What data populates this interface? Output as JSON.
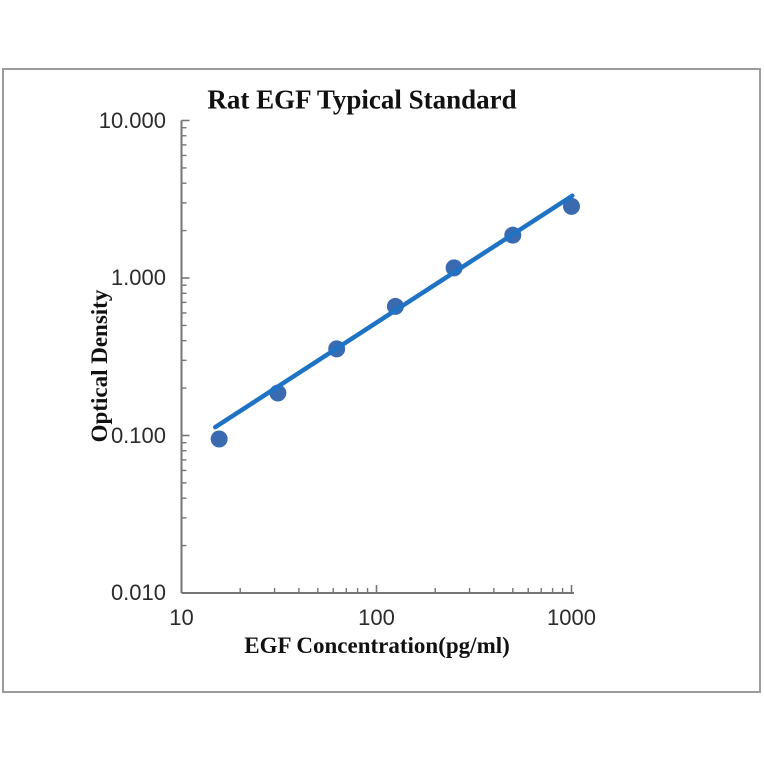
{
  "figure": {
    "background_color": "#ffffff",
    "frame_border_color": "#9c9c9c"
  },
  "chart_data": {
    "type": "scatter",
    "title": "Rat EGF Typical Standard",
    "xlabel": "EGF Concentration(pg/ml)",
    "ylabel": "Optical Density",
    "x_scale": "log",
    "y_scale": "log",
    "xlim": [
      10,
      1000
    ],
    "ylim": [
      0.01,
      10
    ],
    "grid": false,
    "legend": null,
    "x_ticks": [
      {
        "value": 10,
        "label": "10"
      },
      {
        "value": 100,
        "label": "100"
      },
      {
        "value": 1000,
        "label": "1000"
      }
    ],
    "y_ticks": [
      {
        "value": 10,
        "label": "10.000"
      },
      {
        "value": 1,
        "label": "1.000"
      },
      {
        "value": 0.1,
        "label": "0.100"
      },
      {
        "value": 0.01,
        "label": "0.010"
      }
    ],
    "minor_tick_multiples": [
      2,
      3,
      4,
      5,
      6,
      7,
      8,
      9
    ],
    "axis_color": "#767676",
    "series": [
      {
        "name": "standard-points",
        "type": "scatter",
        "marker": "circle",
        "marker_color": "#3a6bb0",
        "marker_radius": 8.5,
        "points": [
          {
            "x": 15.6,
            "y": 0.095
          },
          {
            "x": 31.2,
            "y": 0.186
          },
          {
            "x": 62.5,
            "y": 0.355
          },
          {
            "x": 125,
            "y": 0.66
          },
          {
            "x": 250,
            "y": 1.16
          },
          {
            "x": 500,
            "y": 1.87
          },
          {
            "x": 1000,
            "y": 2.85
          }
        ]
      },
      {
        "name": "trend-line",
        "type": "line",
        "line_color": "#1e73c4",
        "line_width": 4.5,
        "from": {
          "x": 14.9,
          "y": 0.113
        },
        "to": {
          "x": 1010,
          "y": 3.33
        }
      }
    ]
  }
}
